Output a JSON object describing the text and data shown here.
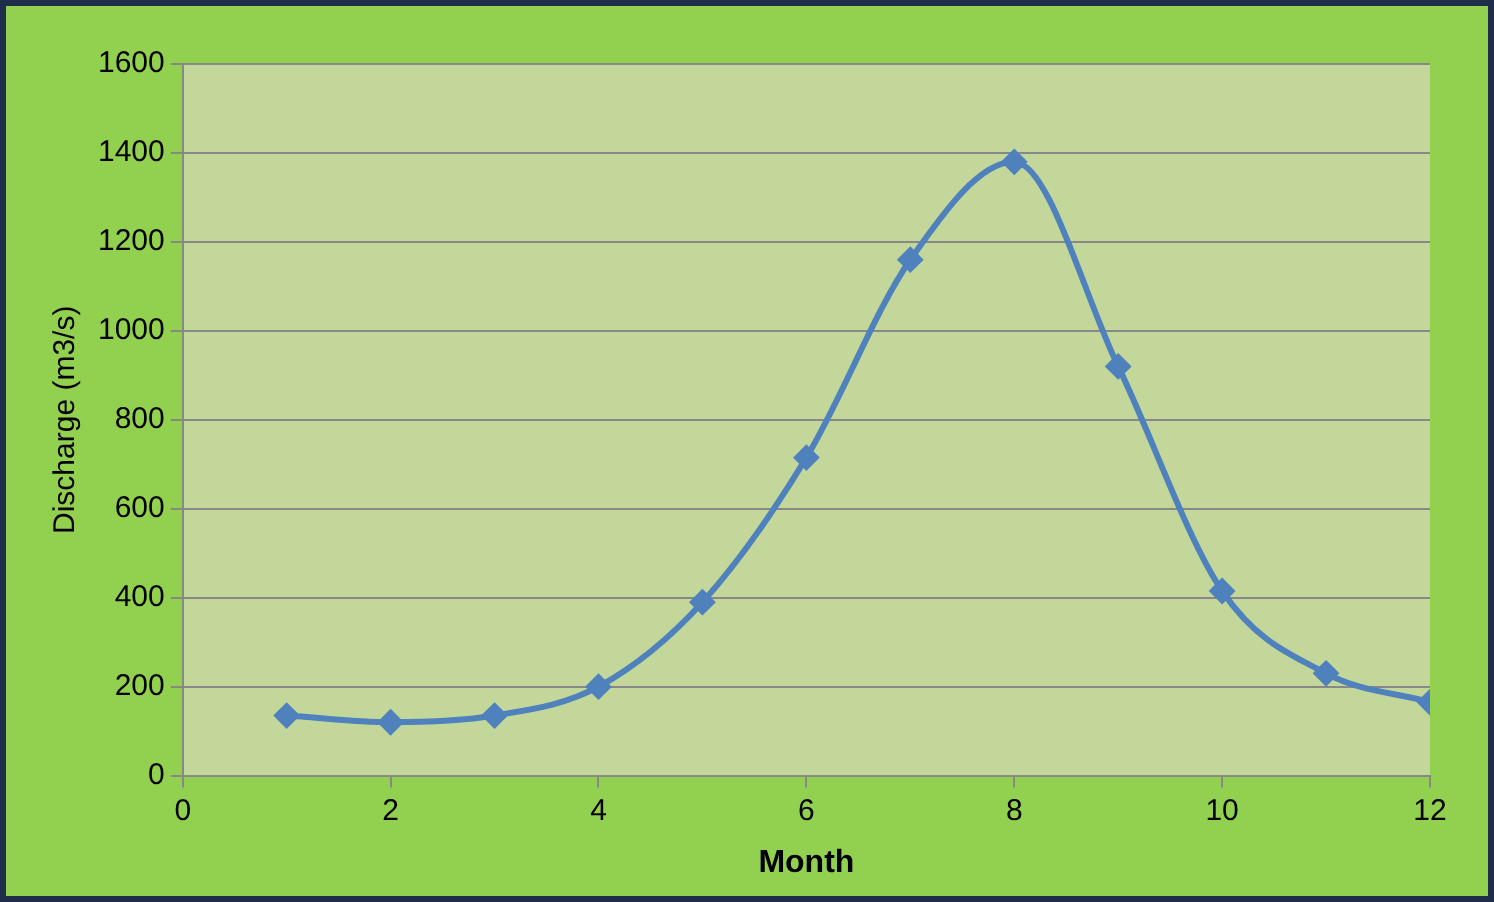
{
  "chart_data": {
    "type": "line",
    "xlabel": "Month",
    "ylabel": "Discharge (m3/s)",
    "x": [
      1,
      2,
      3,
      4,
      5,
      6,
      7,
      8,
      9,
      10,
      11,
      12
    ],
    "series": [
      {
        "color": "#4f81bd",
        "values": [
          135,
          120,
          135,
          200,
          390,
          715,
          1160,
          1380,
          920,
          415,
          230,
          165
        ]
      }
    ],
    "xlim": [
      0,
      12
    ],
    "xticks": [
      0,
      2,
      4,
      6,
      8,
      10,
      12
    ],
    "ylim": [
      0,
      1600
    ],
    "yticks": [
      0,
      200,
      400,
      600,
      800,
      1000,
      1200,
      1400,
      1600
    ],
    "grid": "y",
    "legend": false,
    "marker": "diamond",
    "line_style": "solid"
  }
}
